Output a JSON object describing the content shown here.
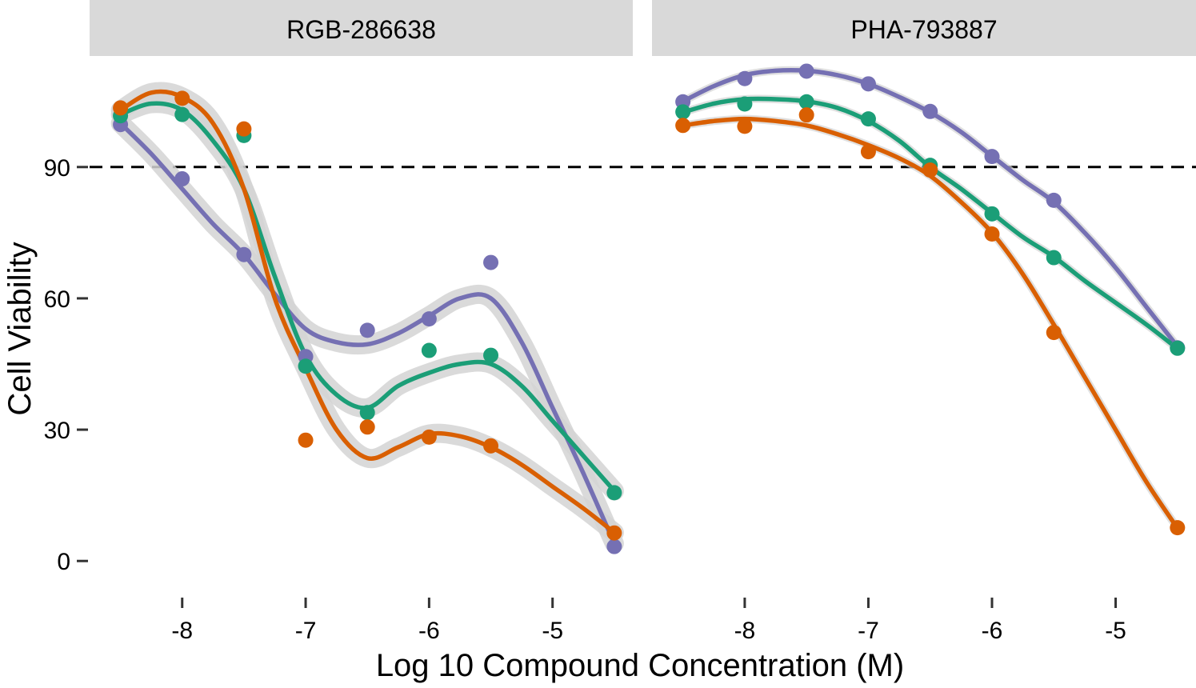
{
  "chart_data": {
    "type": "scatter",
    "xlabel": "Log 10 Compound Concentration (M)",
    "ylabel": "Cell Viability",
    "ylim": [
      -8,
      115
    ],
    "xlim": [
      -8.75,
      -4.35
    ],
    "xticks": [
      "-8",
      "-7",
      "-6",
      "-5"
    ],
    "yticks": [
      "0",
      "30",
      "60",
      "90"
    ],
    "reference_line": {
      "y": 90,
      "style": "dashed",
      "color": "#000000"
    },
    "grid": false,
    "legend": "none",
    "colors": {
      "purple": "#7570b3",
      "green": "#1b9e77",
      "orange": "#d95f02",
      "ribbon": "#d3d3d3",
      "strip": "#d9d9d9"
    },
    "x": [
      -8.5,
      -8,
      -7.5,
      -7,
      -6.5,
      -6,
      -5.5,
      -4.5
    ],
    "panels": [
      {
        "title": "RGB-286638",
        "series": [
          {
            "color": "#7570b3",
            "values": [
              99.7,
              87.3,
              70.0,
              46.7,
              52.7,
              55.3,
              68.2,
              3.3
            ],
            "curve": [
              [
                -8.5,
                100
              ],
              [
                -8.25,
                93
              ],
              [
                -8,
                85
              ],
              [
                -7.75,
                77
              ],
              [
                -7.5,
                70
              ],
              [
                -7.25,
                61
              ],
              [
                -7,
                53
              ],
              [
                -6.75,
                50
              ],
              [
                -6.5,
                49.5
              ],
              [
                -6.25,
                52
              ],
              [
                -6,
                56
              ],
              [
                -5.75,
                60
              ],
              [
                -5.5,
                60
              ],
              [
                -5.25,
                50
              ],
              [
                -5,
                35
              ],
              [
                -4.75,
                20
              ],
              [
                -4.5,
                4
              ]
            ]
          },
          {
            "color": "#1b9e77",
            "values": [
              101.7,
              102.0,
              97.2,
              44.5,
              33.9,
              48.1,
              47.0,
              15.6
            ],
            "curve": [
              [
                -8.5,
                102
              ],
              [
                -8.25,
                104.5
              ],
              [
                -8,
                103
              ],
              [
                -7.75,
                96
              ],
              [
                -7.5,
                85
              ],
              [
                -7.25,
                65
              ],
              [
                -7,
                47
              ],
              [
                -6.75,
                38
              ],
              [
                -6.5,
                35
              ],
              [
                -6.25,
                40
              ],
              [
                -6,
                43
              ],
              [
                -5.75,
                45
              ],
              [
                -5.5,
                45
              ],
              [
                -5.25,
                40
              ],
              [
                -5,
                32
              ],
              [
                -4.75,
                24
              ],
              [
                -4.5,
                16
              ]
            ]
          },
          {
            "color": "#d95f02",
            "values": [
              103.5,
              105.7,
              98.7,
              27.6,
              30.6,
              28.3,
              26.3,
              6.4
            ],
            "curve": [
              [
                -8.5,
                103
              ],
              [
                -8.25,
                107
              ],
              [
                -8,
                106
              ],
              [
                -7.75,
                100
              ],
              [
                -7.5,
                85
              ],
              [
                -7.25,
                60
              ],
              [
                -7,
                44
              ],
              [
                -6.75,
                30
              ],
              [
                -6.5,
                23.5
              ],
              [
                -6.25,
                26
              ],
              [
                -6,
                29
              ],
              [
                -5.75,
                28.5
              ],
              [
                -5.5,
                26
              ],
              [
                -5.25,
                22
              ],
              [
                -5,
                17
              ],
              [
                -4.75,
                12
              ],
              [
                -4.5,
                6.5
              ]
            ]
          }
        ]
      },
      {
        "title": "PHA-793887",
        "series": [
          {
            "color": "#7570b3",
            "values": [
              104.9,
              110.2,
              111.9,
              109.0,
              102.7,
              92.4,
              82.4,
              48.7
            ],
            "curve": [
              [
                -8.5,
                105
              ],
              [
                -8.25,
                108.5
              ],
              [
                -8,
                111
              ],
              [
                -7.75,
                112
              ],
              [
                -7.5,
                112
              ],
              [
                -7.25,
                111
              ],
              [
                -7,
                109
              ],
              [
                -6.75,
                106
              ],
              [
                -6.5,
                102.5
              ],
              [
                -6.25,
                98
              ],
              [
                -6,
                92.5
              ],
              [
                -5.75,
                87
              ],
              [
                -5.5,
                82
              ],
              [
                -5.25,
                75
              ],
              [
                -5,
                67
              ],
              [
                -4.75,
                58
              ],
              [
                -4.5,
                49
              ]
            ]
          },
          {
            "color": "#1b9e77",
            "values": [
              102.6,
              104.4,
              104.9,
              101.0,
              90.4,
              79.3,
              69.3,
              48.6
            ],
            "curve": [
              [
                -8.5,
                102.5
              ],
              [
                -8.25,
                104.5
              ],
              [
                -8,
                105.5
              ],
              [
                -7.75,
                105.5
              ],
              [
                -7.5,
                105
              ],
              [
                -7.25,
                103.5
              ],
              [
                -7,
                100.5
              ],
              [
                -6.75,
                96
              ],
              [
                -6.5,
                90
              ],
              [
                -6.25,
                85
              ],
              [
                -6,
                79.5
              ],
              [
                -5.75,
                74
              ],
              [
                -5.5,
                69.5
              ],
              [
                -5.25,
                64
              ],
              [
                -5,
                59
              ],
              [
                -4.75,
                54
              ],
              [
                -4.5,
                48.5
              ]
            ]
          },
          {
            "color": "#d95f02",
            "values": [
              99.5,
              99.3,
              101.9,
              93.5,
              89.3,
              74.7,
              52.2,
              7.6
            ],
            "curve": [
              [
                -8.5,
                99.5
              ],
              [
                -8.25,
                100.5
              ],
              [
                -8,
                101
              ],
              [
                -7.75,
                100.5
              ],
              [
                -7.5,
                99.5
              ],
              [
                -7.25,
                97.5
              ],
              [
                -7,
                95
              ],
              [
                -6.75,
                92
              ],
              [
                -6.5,
                88
              ],
              [
                -6.25,
                82
              ],
              [
                -6,
                75
              ],
              [
                -5.75,
                65.5
              ],
              [
                -5.5,
                54
              ],
              [
                -5.25,
                42
              ],
              [
                -5,
                30
              ],
              [
                -4.75,
                18
              ],
              [
                -4.5,
                7.5
              ]
            ]
          }
        ]
      }
    ]
  }
}
